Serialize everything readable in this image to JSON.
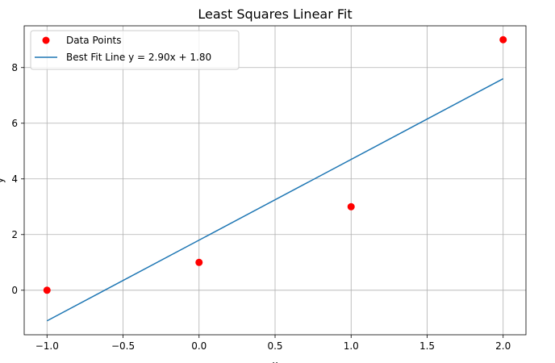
{
  "chart_data": {
    "type": "scatter",
    "title": "Least Squares Linear Fit",
    "xlabel": "x",
    "ylabel": "y",
    "xlim": [
      -1.15,
      2.15
    ],
    "ylim": [
      -1.6,
      9.5
    ],
    "xticks": [
      -1.0,
      -0.5,
      0.0,
      0.5,
      1.0,
      1.5,
      2.0
    ],
    "xtick_labels": [
      "−1.0",
      "−0.5",
      "0.0",
      "0.5",
      "1.0",
      "1.5",
      "2.0"
    ],
    "yticks": [
      0,
      2,
      4,
      6,
      8
    ],
    "ytick_labels": [
      "0",
      "2",
      "4",
      "6",
      "8"
    ],
    "grid": true,
    "legend_position": "top-left",
    "series": [
      {
        "name": "Data Points",
        "kind": "scatter",
        "color": "#ff0000",
        "x": [
          -1,
          0,
          1,
          2
        ],
        "y": [
          0,
          1,
          3,
          9
        ]
      },
      {
        "name": "Best Fit Line y = 2.90x + 1.80",
        "kind": "line",
        "color": "#1f77b4",
        "x": [
          -1,
          2
        ],
        "y": [
          -1.1,
          7.6
        ]
      }
    ]
  }
}
